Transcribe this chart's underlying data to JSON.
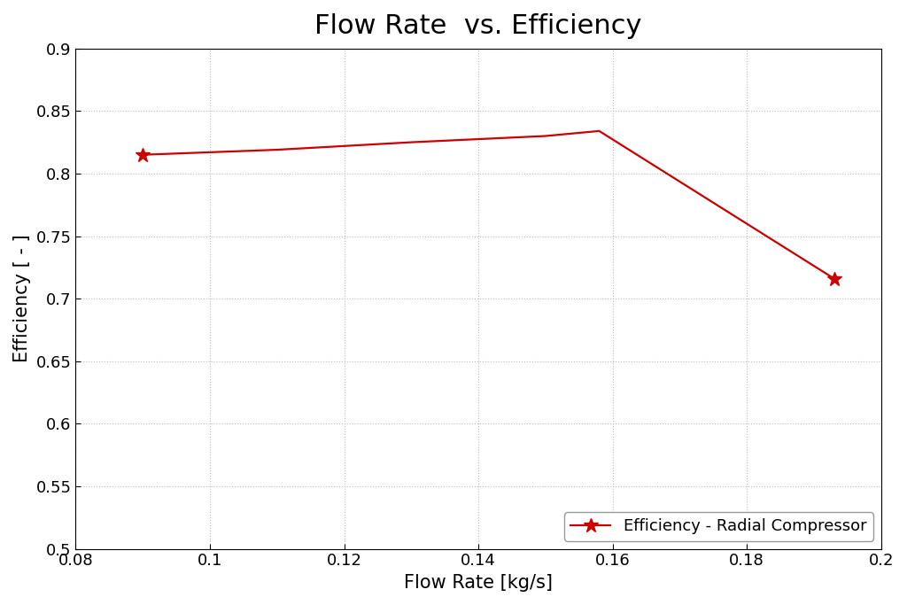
{
  "title": "Flow Rate  vs. Efficiency",
  "xlabel": "Flow Rate [kg/s]",
  "ylabel": "Efficiency [ - ]",
  "x": [
    0.09,
    0.11,
    0.13,
    0.15,
    0.158,
    0.193
  ],
  "y": [
    0.815,
    0.819,
    0.825,
    0.83,
    0.834,
    0.716
  ],
  "line_color": "#cc0000",
  "marker": "*",
  "marker_size": 12,
  "linewidth": 1.6,
  "xlim": [
    0.08,
    0.2
  ],
  "ylim": [
    0.5,
    0.9
  ],
  "xticks": [
    0.08,
    0.1,
    0.12,
    0.14,
    0.16,
    0.18,
    0.2
  ],
  "yticks": [
    0.5,
    0.55,
    0.6,
    0.65,
    0.7,
    0.75,
    0.8,
    0.85,
    0.9
  ],
  "legend_label": "Efficiency - Radial Compressor",
  "legend_loc": "lower right",
  "grid_color": "#bbbbbb",
  "grid_linestyle": ":",
  "title_fontsize": 22,
  "label_fontsize": 15,
  "tick_fontsize": 13,
  "legend_fontsize": 13,
  "background_color": "#ffffff",
  "font_family": "DejaVu Sans"
}
